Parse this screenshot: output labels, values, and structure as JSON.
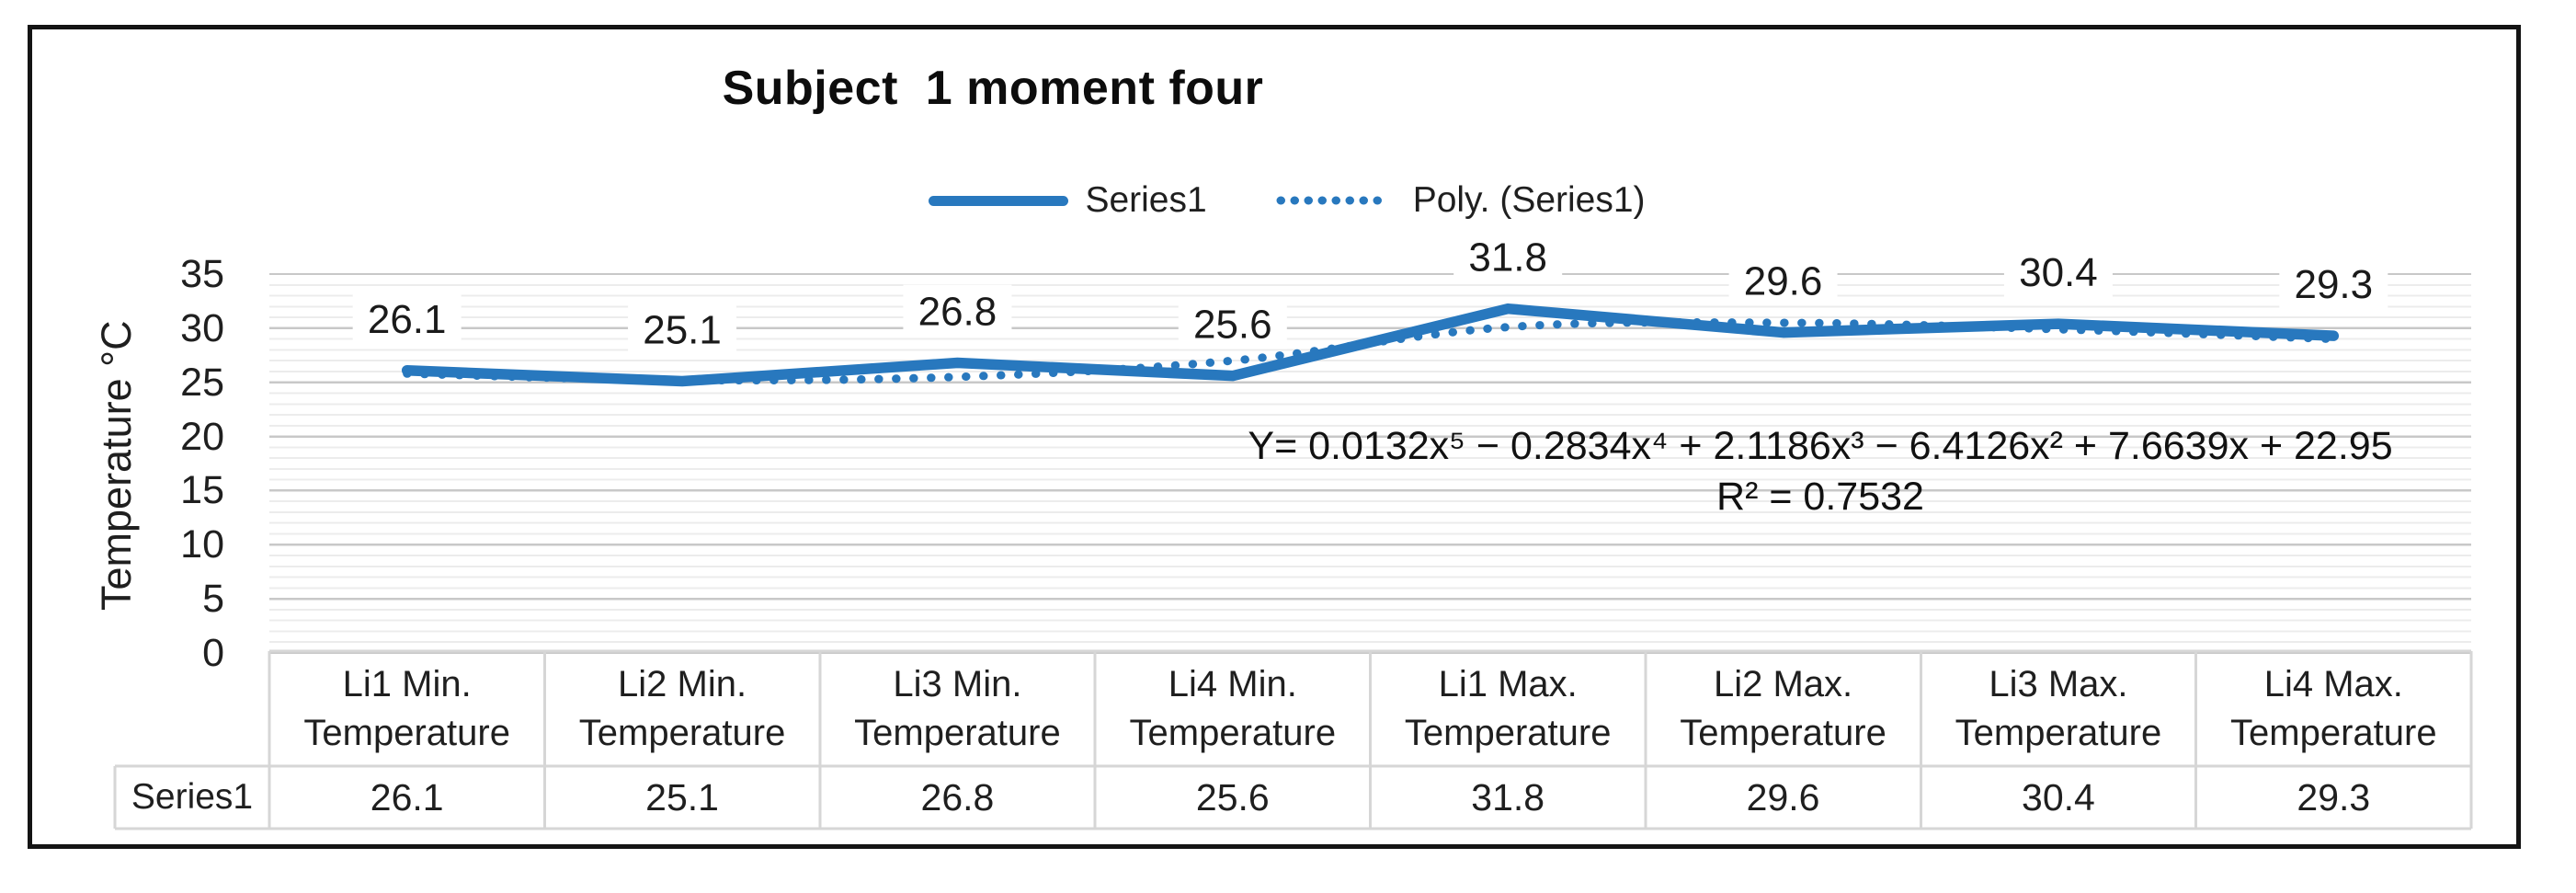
{
  "title": "Subject  1 moment four",
  "legend": {
    "items": [
      {
        "label": "Series1",
        "marker": "solid-line"
      },
      {
        "label": "Poly. (Series1)",
        "marker": "dotted-line"
      }
    ]
  },
  "chart_data": {
    "type": "line",
    "title": "Subject  1 moment four",
    "categories": [
      "Li1 Min. Temperature",
      "Li2 Min. Temperature",
      "Li3 Min. Temperature",
      "Li4 Min. Temperature",
      "Li1 Max. Temperature",
      "Li2 Max. Temperature",
      "Li3 Max. Temperature",
      "Li4 Max. Temperature"
    ],
    "series": [
      {
        "name": "Series1",
        "values": [
          26.1,
          25.1,
          26.8,
          25.6,
          31.8,
          29.6,
          30.4,
          29.3
        ]
      }
    ],
    "data_labels": [
      "26.1",
      "25.1",
      "26.8",
      "25.6",
      "31.8",
      "29.6",
      "30.4",
      "29.3"
    ],
    "trendline": {
      "label": "Poly. (Series1)",
      "equation": "Y= 0.0132x⁵ − 0.2834x⁴ + 2.1186x³ − 6.4126x² + 7.6639x + 22.95",
      "r_squared": "R² = 0.7532",
      "approx_values": [
        25.8,
        25.2,
        25.5,
        27.0,
        30.1,
        30.5,
        29.9,
        29.0
      ]
    },
    "xlabel": "",
    "ylabel": "Temperature °C",
    "ylim": [
      0,
      35
    ],
    "ytick_step": 5,
    "yminor_step": 1,
    "grid": true,
    "legend_position": "top"
  },
  "table": {
    "row_header": "Series1",
    "values": [
      "26.1",
      "25.1",
      "26.8",
      "25.6",
      "31.8",
      "29.6",
      "30.4",
      "29.3"
    ]
  },
  "colors": {
    "series_line": "#2878BE",
    "trendline": "#2878BE",
    "major_gridline": "#C8C8C8",
    "minor_gridline": "#ECECEC",
    "table_border": "#D6D6D6",
    "label_bg": "#FFFFFF",
    "text": "#1F1F1F",
    "frame": "#141414"
  }
}
